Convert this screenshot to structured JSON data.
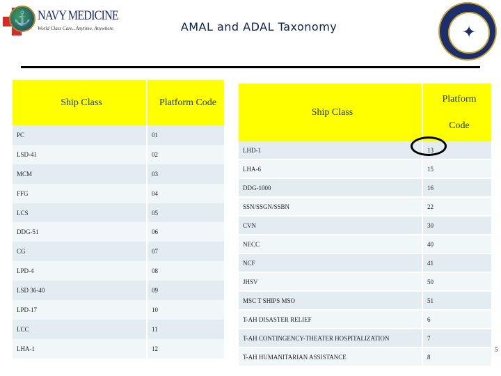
{
  "header": {
    "title": "AMAL and ADAL  Taxonomy",
    "logo_left": {
      "name": "NAVY MEDICINE",
      "tagline": "World Class Care...Anytime, Anywhere"
    },
    "logo_right": {
      "type": "department-of-the-navy-seal"
    }
  },
  "table_left": {
    "headers": [
      "Ship Class",
      "Platform Code"
    ],
    "rows": [
      [
        "PC",
        "01"
      ],
      [
        "LSD-41",
        "02"
      ],
      [
        "MCM",
        "03"
      ],
      [
        "FFG",
        "04"
      ],
      [
        "LCS",
        "05"
      ],
      [
        "DDG-51",
        "06"
      ],
      [
        "CG",
        "07"
      ],
      [
        "LPD-4",
        "08"
      ],
      [
        "LSD 36-40",
        "09"
      ],
      [
        "LPD-17",
        "10"
      ],
      [
        "LCC",
        "11"
      ],
      [
        "LHA-1",
        "12"
      ]
    ]
  },
  "table_right": {
    "headers": [
      "Ship Class",
      "Platform",
      "Code"
    ],
    "rows": [
      [
        "LHD-1",
        "13"
      ],
      [
        "LHA-6",
        "15"
      ],
      [
        "DDG-1000",
        "16"
      ],
      [
        "SSN/SSGN/SSBN",
        "22"
      ],
      [
        "CVN",
        "30"
      ],
      [
        "NECC",
        "40"
      ],
      [
        "NCF",
        "41"
      ],
      [
        "JHSV",
        "50"
      ],
      [
        "MSC T SHIPS MSO",
        "51"
      ],
      [
        "T-AH DISASTER RELIEF",
        "6"
      ],
      [
        "T-AH CONTINGENCY-THEATER HOSPITALIZATION",
        "7"
      ],
      [
        "T-AH HUMANITARIAN ASSISTANCE",
        "8"
      ]
    ]
  },
  "page_number": "5",
  "colors": {
    "header_fill": "#ffff00",
    "title": "#0b1f4d",
    "row_odd": "#e3edf1",
    "row_even": "#f1f6f8"
  }
}
